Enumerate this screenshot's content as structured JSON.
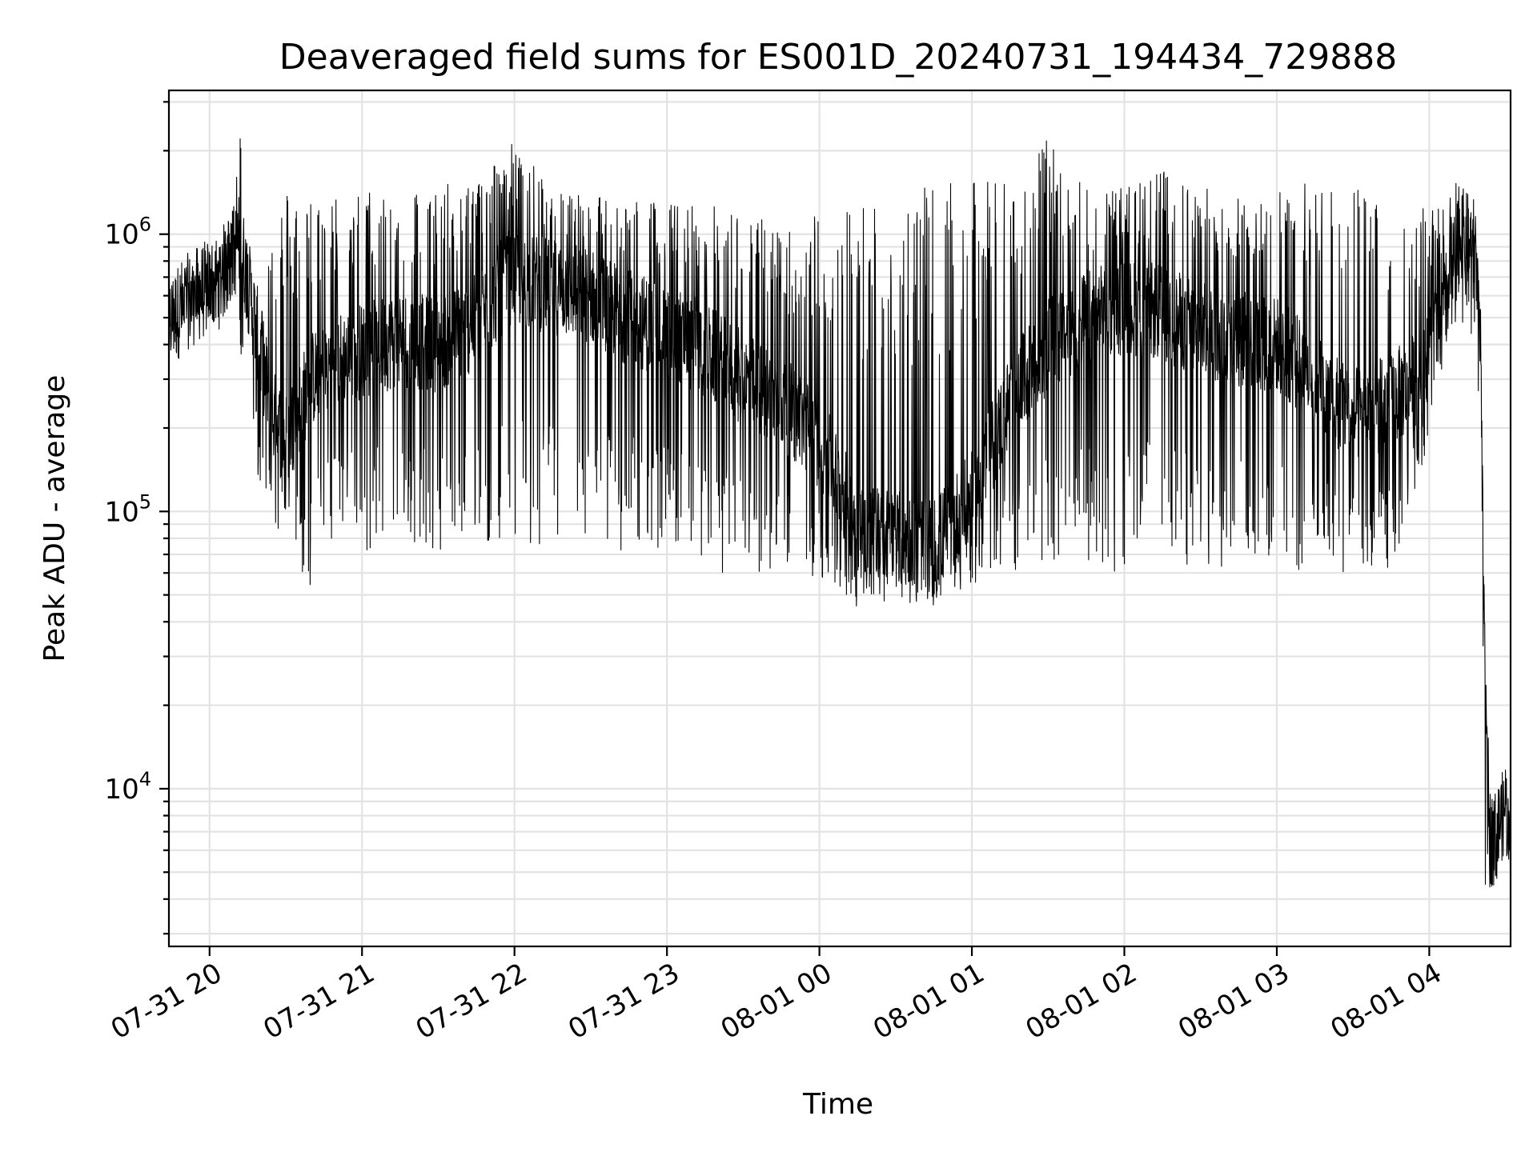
{
  "chart_data": {
    "type": "line",
    "title": "Deaveraged field sums for ES001D_20240731_194434_729888",
    "xlabel": "Time",
    "ylabel": "Peak ADU - average",
    "yscale": "log",
    "grid": true,
    "xlim": [
      "2024-07-31 19:44",
      "2024-08-01 04:32"
    ],
    "ylim": [
      2700,
      3300000
    ],
    "x_tick_labels": [
      "07-31 20",
      "07-31 21",
      "07-31 22",
      "07-31 23",
      "08-01 00",
      "08-01 01",
      "08-01 02",
      "08-01 03",
      "08-01 04"
    ],
    "y_ticks": [
      {
        "base": "10",
        "exp": "4",
        "value": 10000
      },
      {
        "base": "10",
        "exp": "5",
        "value": 100000
      },
      {
        "base": "10",
        "exp": "6",
        "value": 1000000
      }
    ],
    "line_color": "#000000",
    "series": [
      {
        "x": [
          "2024-07-31 19:44",
          "2024-07-31 19:50",
          "2024-07-31 19:58",
          "2024-07-31 20:04",
          "2024-07-31 20:08",
          "2024-07-31 20:12",
          "2024-07-31 20:16",
          "2024-07-31 20:20",
          "2024-07-31 20:25",
          "2024-07-31 20:30",
          "2024-07-31 20:40",
          "2024-07-31 20:50",
          "2024-07-31 21:00",
          "2024-07-31 21:15",
          "2024-07-31 21:30",
          "2024-07-31 21:45",
          "2024-07-31 21:58",
          "2024-07-31 22:15",
          "2024-07-31 22:30",
          "2024-07-31 22:45",
          "2024-07-31 23:00",
          "2024-07-31 23:15",
          "2024-07-31 23:30",
          "2024-07-31 23:45",
          "2024-08-01 00:00",
          "2024-08-01 00:15",
          "2024-08-01 00:30",
          "2024-08-01 00:45",
          "2024-08-01 01:00",
          "2024-08-01 01:15",
          "2024-08-01 01:30",
          "2024-08-01 01:45",
          "2024-08-01 02:00",
          "2024-08-01 02:15",
          "2024-08-01 02:30",
          "2024-08-01 02:45",
          "2024-08-01 03:00",
          "2024-08-01 03:15",
          "2024-08-01 03:30",
          "2024-08-01 03:45",
          "2024-08-01 03:55",
          "2024-08-01 04:05",
          "2024-08-01 04:12",
          "2024-08-01 04:18",
          "2024-08-01 04:20",
          "2024-08-01 04:22",
          "2024-08-01 04:24",
          "2024-08-01 04:27",
          "2024-08-01 04:30",
          "2024-08-01 04:32"
        ],
        "baseline": [
          480000,
          560000,
          630000,
          680000,
          820000,
          950000,
          600000,
          380000,
          220000,
          180000,
          300000,
          350000,
          380000,
          420000,
          400000,
          480000,
          700000,
          650000,
          600000,
          500000,
          450000,
          380000,
          300000,
          250000,
          180000,
          90000,
          80000,
          75000,
          110000,
          250000,
          400000,
          500000,
          550000,
          520000,
          450000,
          420000,
          400000,
          300000,
          220000,
          250000,
          300000,
          500000,
          1000000,
          900000,
          500000,
          20000,
          6500,
          7000,
          9000,
          6000
        ],
        "spike_high": [
          600000,
          700000,
          800000,
          900000,
          1200000,
          2400000,
          700000,
          600000,
          1200000,
          1500000,
          1400000,
          1400000,
          1450000,
          1500000,
          1500000,
          1600000,
          2200000,
          1500000,
          1400000,
          1400000,
          1300000,
          1300000,
          1200000,
          1100000,
          1200000,
          1400000,
          1400000,
          1500000,
          1550000,
          1650000,
          2200000,
          1500000,
          1500000,
          1700000,
          1500000,
          1400000,
          1500000,
          1600000,
          1500000,
          1400000,
          1300000,
          1300000,
          1600000,
          1000000,
          600000,
          30000,
          9000,
          10000,
          11000,
          8000
        ],
        "spike_low": [
          450000,
          450000,
          500000,
          480000,
          520000,
          400000,
          180000,
          110000,
          90000,
          80000,
          50000,
          90000,
          70000,
          80000,
          65000,
          70000,
          75000,
          65000,
          60000,
          70000,
          70000,
          60000,
          60000,
          55000,
          58000,
          45000,
          48000,
          45000,
          55000,
          60000,
          65000,
          60000,
          60000,
          62000,
          60000,
          62000,
          60000,
          58000,
          60000,
          60000,
          120000,
          300000,
          500000,
          400000,
          100000,
          4000,
          3800,
          5000,
          6000,
          5000
        ]
      }
    ]
  }
}
